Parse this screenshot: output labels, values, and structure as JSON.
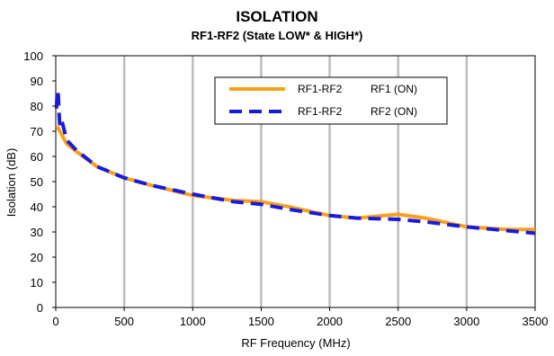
{
  "colors": {
    "series_rf1_on": "#f7a01e",
    "series_rf2_on": "#1a1adc",
    "grid": "#bdbdbd",
    "axis": "#000000"
  },
  "chart_data": {
    "type": "line",
    "title": "ISOLATION",
    "subtitle": "RF1-RF2 (State LOW* & HIGH*)",
    "xlabel": "RF Frequency (MHz)",
    "ylabel": "Isolation (dB)",
    "xlim": [
      0,
      3500
    ],
    "ylim": [
      0,
      100
    ],
    "xticks": [
      0,
      500,
      1000,
      1500,
      2000,
      2500,
      3000,
      3500
    ],
    "yticks": [
      0,
      10,
      20,
      30,
      40,
      50,
      60,
      70,
      80,
      90,
      100
    ],
    "grid": "vertical",
    "legend_position": "top-right",
    "legend": [
      {
        "path": "RF1-RF2",
        "state": "RF1 (ON)"
      },
      {
        "path": "RF1-RF2",
        "state": "RF2 (ON)"
      }
    ],
    "series": [
      {
        "name": "RF1-RF2 RF1 (ON)",
        "style": "solid",
        "x": [
          10,
          20,
          40,
          80,
          150,
          300,
          500,
          700,
          1000,
          1300,
          1500,
          1700,
          2000,
          2200,
          2500,
          2700,
          3000,
          3300,
          3500
        ],
        "y": [
          72,
          71,
          69,
          65,
          62,
          56,
          51.5,
          48.5,
          44.5,
          42.5,
          42,
          40,
          36.5,
          35.5,
          37,
          35.5,
          32,
          31,
          31
        ]
      },
      {
        "name": "RF1-RF2 RF2 (ON)",
        "style": "dashed",
        "x": [
          5,
          10,
          15,
          20,
          25,
          30,
          40,
          50,
          80,
          150,
          300,
          500,
          700,
          1000,
          1300,
          1500,
          1700,
          2000,
          2200,
          2500,
          2700,
          3000,
          3300,
          3500
        ],
        "y": [
          79,
          85,
          86,
          83,
          76,
          72,
          74,
          73,
          66.5,
          62.5,
          56,
          51.5,
          48.5,
          45,
          42,
          41,
          39,
          36.5,
          35.5,
          35,
          34,
          32,
          30.5,
          29.5
        ]
      }
    ]
  }
}
